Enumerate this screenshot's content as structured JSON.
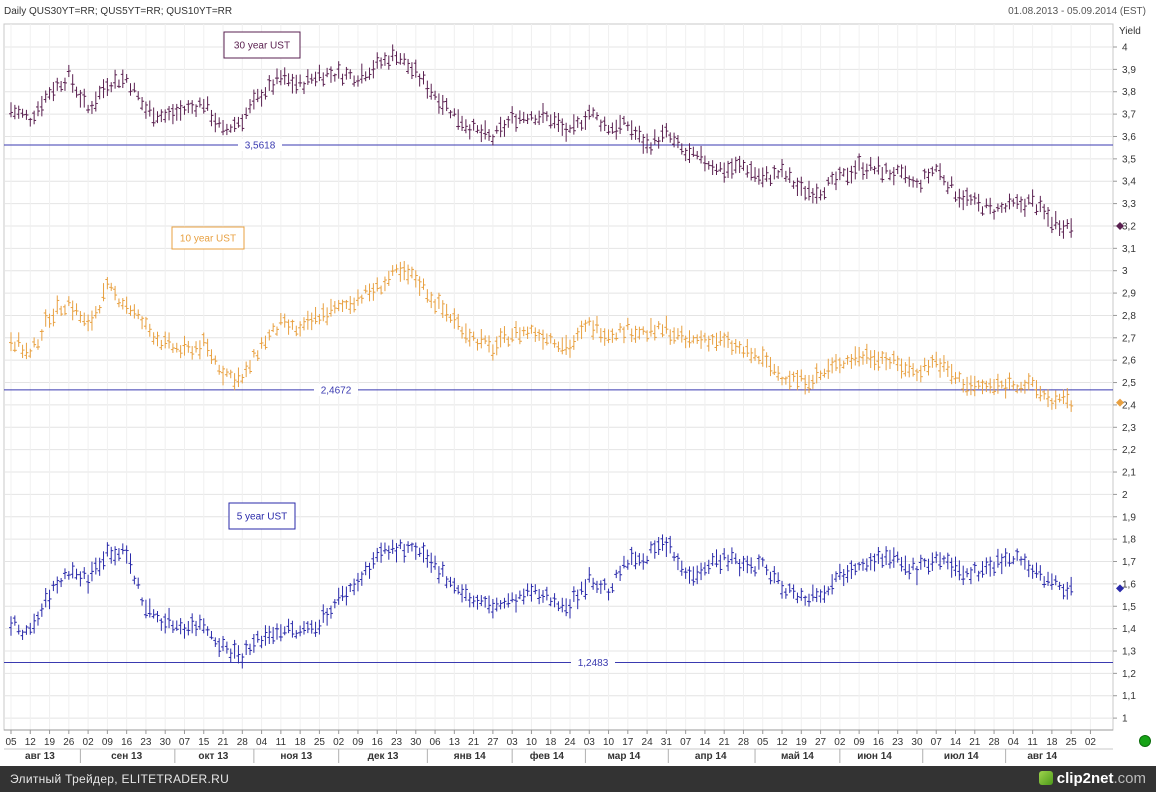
{
  "header": {
    "title": "Daily QUS30YT=RR; QUS5YT=RR; QUS10YT=RR",
    "date_range": "01.08.2013 - 05.09.2014 (EST)"
  },
  "footer": {
    "text": "Элитный Трейдер, ELITETRADER.RU",
    "brand": "clip2net",
    "brand_tld": ".com"
  },
  "colors": {
    "series_30y": "#5a2050",
    "series_10y": "#e8a040",
    "series_5y": "#2a2aaa",
    "hline": "#3a3ab0",
    "grid": "#e4e4e4",
    "status_dot": "#17a317"
  },
  "chart_data": {
    "type": "line",
    "subtype": "ohlc-bars",
    "y_axis_title": "Yield",
    "ylim": [
      0.9,
      4.1
    ],
    "y_ticks": [
      "4",
      "3,9",
      "3,8",
      "3,7",
      "3,6",
      "3,5",
      "3,4",
      "3,3",
      "3,2",
      "3,1",
      "3",
      "2,9",
      "2,8",
      "2,7",
      "2,6",
      "2,5",
      "2,4",
      "2,3",
      "2,2",
      "2,1",
      "2",
      "1,9",
      "1,8",
      "1,7",
      "1,6",
      "1,5",
      "1,4",
      "1,3",
      "1,2",
      "1,1",
      "1"
    ],
    "y_tick_values": [
      4,
      3.9,
      3.8,
      3.7,
      3.6,
      3.5,
      3.4,
      3.3,
      3.2,
      3.1,
      3,
      2.9,
      2.8,
      2.7,
      2.6,
      2.5,
      2.4,
      2.3,
      2.2,
      2.1,
      2,
      1.9,
      1.8,
      1.7,
      1.6,
      1.5,
      1.4,
      1.3,
      1.2,
      1.1,
      1
    ],
    "x_ticks": [
      "05",
      "12",
      "19",
      "26",
      "02",
      "09",
      "16",
      "23",
      "30",
      "07",
      "15",
      "21",
      "28",
      "04",
      "11",
      "18",
      "25",
      "02",
      "09",
      "16",
      "23",
      "30",
      "06",
      "13",
      "21",
      "27",
      "03",
      "10",
      "18",
      "24",
      "03",
      "10",
      "17",
      "24",
      "31",
      "07",
      "14",
      "21",
      "28",
      "05",
      "12",
      "19",
      "27",
      "02",
      "09",
      "16",
      "23",
      "30",
      "07",
      "14",
      "21",
      "28",
      "04",
      "11",
      "18",
      "25",
      "02"
    ],
    "x_tick_weeks": [
      0,
      1,
      2,
      3,
      4,
      5,
      6,
      7,
      8,
      9,
      10,
      11,
      12,
      13,
      14,
      15,
      16,
      17,
      18,
      19,
      20,
      21,
      22,
      23,
      24,
      25,
      26,
      27,
      28,
      29,
      30,
      31,
      32,
      33,
      34,
      35,
      36,
      37,
      38,
      39,
      40,
      41,
      42,
      43,
      44,
      45,
      46,
      47,
      48,
      49,
      50,
      51,
      52,
      53,
      54,
      55,
      56
    ],
    "months": [
      "авг 13",
      "сен 13",
      "окт 13",
      "ноя 13",
      "дек 13",
      "янв 14",
      "фев 14",
      "мар 14",
      "апр 14",
      "май 14",
      "июн 14",
      "июл 14",
      "авг 14"
    ],
    "month_positions": [
      1.5,
      6,
      10.5,
      14.8,
      19.3,
      23.8,
      27.8,
      31.8,
      36.3,
      40.8,
      44.8,
      49.3,
      53.5
    ],
    "month_separators": [
      3.6,
      8.5,
      12.6,
      17,
      21.6,
      26,
      29.8,
      34.1,
      38.6,
      43,
      47.3,
      51.6
    ],
    "series": [
      {
        "name": "30 year UST",
        "color": "#5a2050",
        "last_value": 3.2,
        "weekly": [
          3.72,
          3.68,
          3.8,
          3.87,
          3.72,
          3.84,
          3.86,
          3.72,
          3.69,
          3.72,
          3.75,
          3.62,
          3.68,
          3.79,
          3.86,
          3.83,
          3.88,
          3.88,
          3.87,
          3.92,
          3.97,
          3.88,
          3.79,
          3.7,
          3.63,
          3.59,
          3.68,
          3.7,
          3.68,
          3.61,
          3.71,
          3.64,
          3.65,
          3.56,
          3.61,
          3.52,
          3.49,
          3.45,
          3.47,
          3.41,
          3.44,
          3.36,
          3.36,
          3.41,
          3.47,
          3.45,
          3.43,
          3.38,
          3.46,
          3.35,
          3.3,
          3.27,
          3.29,
          3.31,
          3.22,
          3.2
        ]
      },
      {
        "name": "10 year UST",
        "color": "#e8a040",
        "last_value": 2.41,
        "weekly": [
          2.7,
          2.62,
          2.8,
          2.86,
          2.75,
          2.92,
          2.85,
          2.75,
          2.67,
          2.64,
          2.67,
          2.55,
          2.51,
          2.67,
          2.76,
          2.73,
          2.8,
          2.83,
          2.88,
          2.92,
          2.99,
          2.97,
          2.86,
          2.78,
          2.7,
          2.65,
          2.72,
          2.73,
          2.7,
          2.66,
          2.76,
          2.72,
          2.74,
          2.72,
          2.74,
          2.68,
          2.7,
          2.68,
          2.64,
          2.6,
          2.53,
          2.51,
          2.53,
          2.59,
          2.62,
          2.62,
          2.58,
          2.55,
          2.6,
          2.52,
          2.48,
          2.48,
          2.5,
          2.48,
          2.42,
          2.41
        ]
      },
      {
        "name": "5 year UST",
        "color": "#2a2aaa",
        "last_value": 1.58,
        "weekly": [
          1.42,
          1.38,
          1.55,
          1.66,
          1.62,
          1.75,
          1.73,
          1.49,
          1.43,
          1.41,
          1.42,
          1.32,
          1.28,
          1.36,
          1.4,
          1.38,
          1.43,
          1.53,
          1.61,
          1.73,
          1.76,
          1.74,
          1.68,
          1.6,
          1.52,
          1.5,
          1.52,
          1.56,
          1.53,
          1.51,
          1.62,
          1.57,
          1.7,
          1.73,
          1.78,
          1.64,
          1.68,
          1.72,
          1.68,
          1.68,
          1.59,
          1.54,
          1.56,
          1.64,
          1.7,
          1.72,
          1.7,
          1.66,
          1.72,
          1.66,
          1.65,
          1.69,
          1.73,
          1.67,
          1.6,
          1.58
        ]
      }
    ],
    "horizontal_lines": [
      {
        "value": 3.5618,
        "label": "3,5618"
      },
      {
        "value": 2.4672,
        "label": "2,4672"
      },
      {
        "value": 1.2483,
        "label": "1,2483"
      }
    ],
    "legend_boxes": [
      "30 year UST",
      "10 year UST",
      "5 year UST"
    ],
    "legend_placement": "inside, above each series (left)",
    "grid": true
  }
}
